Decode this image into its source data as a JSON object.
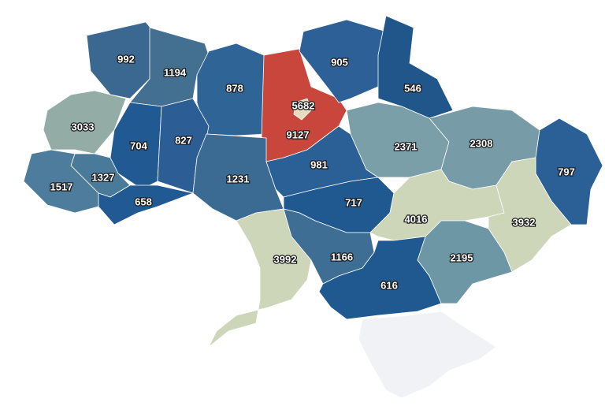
{
  "regions": [
    {
      "value": 992,
      "color": "#3a6890"
    },
    {
      "value": 1194,
      "color": "#436f90"
    },
    {
      "value": 878,
      "color": "#2f6496"
    },
    {
      "value": 9127,
      "color": "#c9463d"
    },
    {
      "value": 5682,
      "color": "#e8dcc0"
    },
    {
      "value": 905,
      "color": "#2c6096"
    },
    {
      "value": 546,
      "color": "#21568a"
    },
    {
      "value": 3033,
      "color": "#93ada6"
    },
    {
      "value": 704,
      "color": "#215a92"
    },
    {
      "value": 827,
      "color": "#2c5e95"
    },
    {
      "value": 1327,
      "color": "#4a7a9a"
    },
    {
      "value": 1517,
      "color": "#4d7c9c"
    },
    {
      "value": 658,
      "color": "#215a92"
    },
    {
      "value": 1231,
      "color": "#3b6a92"
    },
    {
      "value": 981,
      "color": "#2a6095"
    },
    {
      "value": 2371,
      "color": "#7a9fa8"
    },
    {
      "value": 2308,
      "color": "#779ca7"
    },
    {
      "value": 797,
      "color": "#2a6096"
    },
    {
      "value": 717,
      "color": "#1f5990"
    },
    {
      "value": 4016,
      "color": "#cdd6b8"
    },
    {
      "value": 3932,
      "color": "#cdd6b8"
    },
    {
      "value": 3992,
      "color": "#cdd6b8"
    },
    {
      "value": 1166,
      "color": "#3e6e93"
    },
    {
      "value": 2195,
      "color": "#6e97a5"
    },
    {
      "value": 616,
      "color": "#1f5990"
    }
  ]
}
